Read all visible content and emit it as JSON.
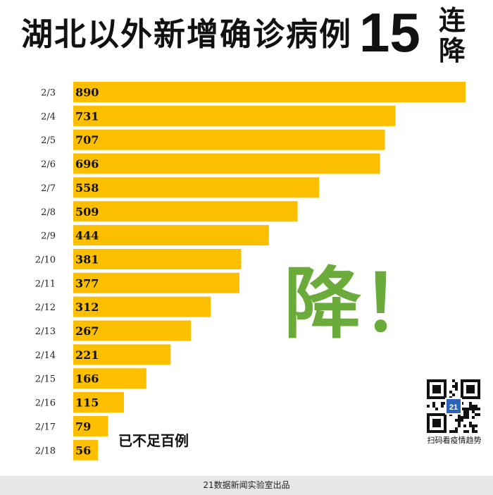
{
  "header": {
    "title": "湖北以外新增确诊病例",
    "number": "15",
    "tail_line1": "连",
    "tail_line2": "降"
  },
  "chart_data": {
    "type": "bar",
    "orientation": "horizontal",
    "categories": [
      "2/3",
      "2/4",
      "2/5",
      "2/6",
      "2/7",
      "2/8",
      "2/9",
      "2/10",
      "2/11",
      "2/12",
      "2/13",
      "2/14",
      "2/15",
      "2/16",
      "2/17",
      "2/18"
    ],
    "values": [
      890,
      731,
      707,
      696,
      558,
      509,
      444,
      381,
      377,
      312,
      267,
      221,
      166,
      115,
      79,
      56
    ],
    "bar_color": "#fbbf00",
    "xlim": [
      0,
      890
    ],
    "grid": false,
    "legend": "none"
  },
  "big_text": "降！",
  "annotation": "已不足百例",
  "qr": {
    "badge": "21",
    "caption": "扫码看疫情趋势"
  },
  "footer": "21数据新闻实验室出品",
  "colors": {
    "accent_green": "#6aab3c",
    "bar": "#fbbf00"
  }
}
